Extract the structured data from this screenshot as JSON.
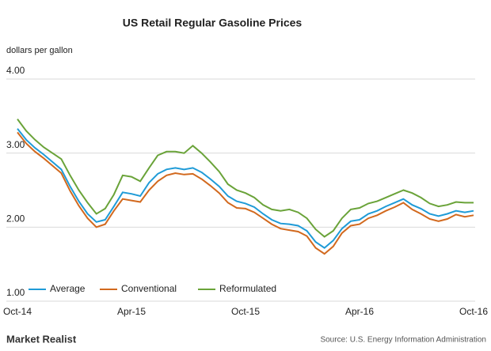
{
  "chart_data": {
    "type": "line",
    "title": "US Retail Regular Gasoline Prices",
    "y_label": "dollars per gallon",
    "categories": [
      "Oct-14",
      null,
      null,
      null,
      null,
      null,
      null,
      null,
      null,
      null,
      null,
      null,
      null,
      "Apr-15",
      null,
      null,
      null,
      null,
      null,
      null,
      null,
      null,
      null,
      null,
      null,
      null,
      "Oct-15",
      null,
      null,
      null,
      null,
      null,
      null,
      null,
      null,
      null,
      null,
      null,
      null,
      "Apr-16",
      null,
      null,
      null,
      null,
      null,
      null,
      null,
      null,
      null,
      null,
      null,
      null,
      "Oct-16"
    ],
    "series": [
      {
        "name": "Average",
        "color": "#1f9bd7",
        "values": [
          3.33,
          3.18,
          3.07,
          2.98,
          2.88,
          2.78,
          2.55,
          2.35,
          2.18,
          2.07,
          2.1,
          2.28,
          2.47,
          2.45,
          2.42,
          2.6,
          2.72,
          2.78,
          2.8,
          2.78,
          2.8,
          2.74,
          2.65,
          2.55,
          2.42,
          2.35,
          2.32,
          2.27,
          2.18,
          2.1,
          2.05,
          2.04,
          2.02,
          1.95,
          1.8,
          1.72,
          1.82,
          1.98,
          2.08,
          2.1,
          2.18,
          2.22,
          2.28,
          2.33,
          2.38,
          2.3,
          2.25,
          2.18,
          2.15,
          2.18,
          2.22,
          2.2,
          2.22
        ]
      },
      {
        "name": "Conventional",
        "color": "#d2691e",
        "values": [
          3.28,
          3.13,
          3.02,
          2.93,
          2.83,
          2.73,
          2.49,
          2.29,
          2.12,
          2.0,
          2.04,
          2.22,
          2.38,
          2.36,
          2.34,
          2.5,
          2.62,
          2.7,
          2.73,
          2.71,
          2.72,
          2.65,
          2.56,
          2.46,
          2.33,
          2.26,
          2.25,
          2.2,
          2.12,
          2.04,
          1.98,
          1.96,
          1.94,
          1.88,
          1.72,
          1.64,
          1.74,
          1.92,
          2.02,
          2.04,
          2.12,
          2.16,
          2.22,
          2.27,
          2.33,
          2.24,
          2.18,
          2.11,
          2.08,
          2.11,
          2.17,
          2.14,
          2.16
        ]
      },
      {
        "name": "Reformulated",
        "color": "#6aa339",
        "values": [
          3.46,
          3.3,
          3.18,
          3.08,
          3.0,
          2.92,
          2.7,
          2.5,
          2.33,
          2.18,
          2.25,
          2.44,
          2.7,
          2.68,
          2.62,
          2.8,
          2.97,
          3.02,
          3.02,
          3.0,
          3.1,
          3.0,
          2.88,
          2.75,
          2.58,
          2.5,
          2.46,
          2.4,
          2.3,
          2.24,
          2.22,
          2.24,
          2.2,
          2.12,
          1.97,
          1.87,
          1.95,
          2.12,
          2.24,
          2.26,
          2.32,
          2.35,
          2.4,
          2.45,
          2.5,
          2.46,
          2.4,
          2.32,
          2.28,
          2.3,
          2.34,
          2.33,
          2.33
        ]
      }
    ],
    "ylim": [
      1,
      4
    ],
    "yticks": [
      {
        "value": 1,
        "label": "1.00"
      },
      {
        "value": 2,
        "label": "2.00"
      },
      {
        "value": 3,
        "label": "3.00"
      },
      {
        "value": 4,
        "label": "4.00"
      }
    ],
    "grid": true,
    "legend": "bottom-left",
    "brand": "Market Realist",
    "source": "Source: U.S. Energy Information Administration"
  }
}
